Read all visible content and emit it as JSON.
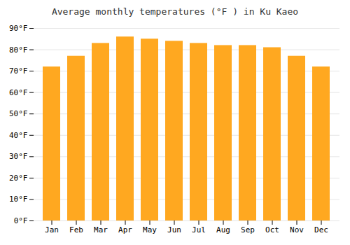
{
  "chart_data": {
    "type": "bar",
    "title": "Average monthly temperatures (°F ) in Ku Kaeo",
    "categories": [
      "Jan",
      "Feb",
      "Mar",
      "Apr",
      "May",
      "Jun",
      "Jul",
      "Aug",
      "Sep",
      "Oct",
      "Nov",
      "Dec"
    ],
    "values": [
      72,
      77,
      83,
      86,
      85,
      84,
      83,
      82,
      82,
      81,
      77,
      72
    ],
    "color": "#FFA820",
    "ylim": [
      0,
      90
    ],
    "yticks": [
      {
        "value": 0,
        "label": "0°F"
      },
      {
        "value": 10,
        "label": "10°F"
      },
      {
        "value": 20,
        "label": "20°F"
      },
      {
        "value": 30,
        "label": "30°F"
      },
      {
        "value": 40,
        "label": "40°F"
      },
      {
        "value": 50,
        "label": "50°F"
      },
      {
        "value": 60,
        "label": "60°F"
      },
      {
        "value": 70,
        "label": "70°F"
      },
      {
        "value": 80,
        "label": "80°F"
      },
      {
        "value": 90,
        "label": "90°F"
      }
    ],
    "grid": true
  }
}
